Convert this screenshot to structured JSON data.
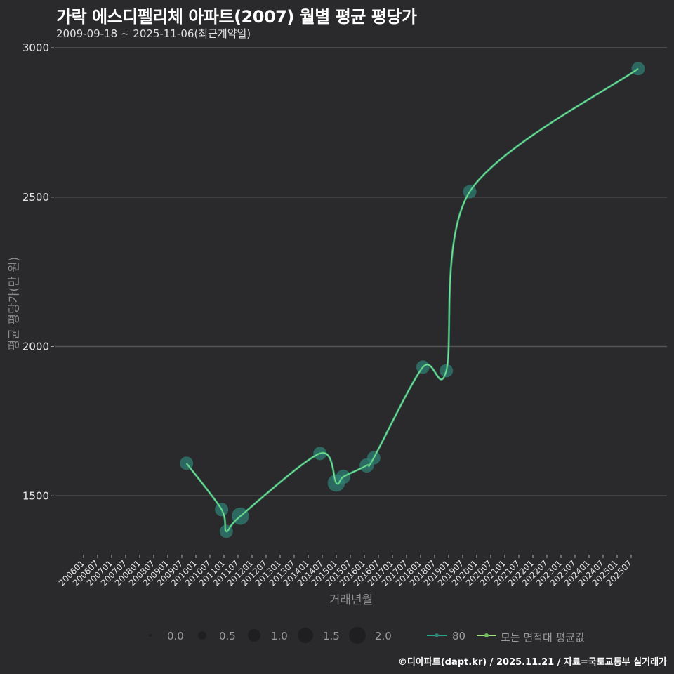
{
  "header": {
    "title": "가락 에스디펠리체 아파트(2007) 월별 평균 평당가",
    "subtitle": "2009-09-18 ~ 2025-11-06(최근계약일)"
  },
  "footer": "©디아파트(dapt.kr) / 2025.11.21 / 자료=국토교통부 실거래가",
  "colors": {
    "background": "#2a2a2c",
    "grid": "#555555",
    "series_80": "#2aa58a",
    "avg_line": "#9ee87a",
    "point_fill": "#2f7f72"
  },
  "chart_data": {
    "type": "line",
    "title": "가락 에스디펠리체 아파트(2007) 월별 평균 평당가",
    "subtitle": "2009-09-18 ~ 2025-11-06(최근계약일)",
    "xlabel": "거래년월",
    "ylabel": "평균 평당가(만 원)",
    "ylim": [
      1300,
      3000
    ],
    "yticks": [
      1500,
      2000,
      2500,
      3000
    ],
    "xticks": [
      "200601",
      "200607",
      "200701",
      "200707",
      "200801",
      "200807",
      "200901",
      "200907",
      "201001",
      "201007",
      "201101",
      "201107",
      "201201",
      "201207",
      "201301",
      "201307",
      "201401",
      "201407",
      "201501",
      "201507",
      "201601",
      "201607",
      "201701",
      "201707",
      "201801",
      "201807",
      "201901",
      "201907",
      "202001",
      "202007",
      "202101",
      "202107",
      "202201",
      "202207",
      "202301",
      "202307",
      "202401",
      "202407",
      "202501",
      "202507"
    ],
    "grid": true,
    "legend_position": "bottom",
    "size_legend": {
      "title": "",
      "values": [
        0.0,
        0.5,
        1.0,
        1.5,
        2.0
      ]
    },
    "series": [
      {
        "name": "80",
        "type": "scatter+line",
        "points": [
          {
            "x": "200909",
            "y": 1609,
            "size": 1.0
          },
          {
            "x": "201012",
            "y": 1454,
            "size": 1.0
          },
          {
            "x": "201102",
            "y": 1381,
            "size": 1.0
          },
          {
            "x": "201108",
            "y": 1432,
            "size": 1.8
          },
          {
            "x": "201406",
            "y": 1642,
            "size": 1.0
          },
          {
            "x": "201501",
            "y": 1543,
            "size": 1.8
          },
          {
            "x": "201504",
            "y": 1564,
            "size": 1.2
          },
          {
            "x": "201602",
            "y": 1602,
            "size": 1.2
          },
          {
            "x": "201605",
            "y": 1627,
            "size": 1.0
          },
          {
            "x": "201802",
            "y": 1931,
            "size": 1.0
          },
          {
            "x": "201812",
            "y": 1919,
            "size": 1.0
          },
          {
            "x": "201910",
            "y": 2518,
            "size": 1.0
          },
          {
            "x": "202510",
            "y": 2930,
            "size": 1.0
          }
        ]
      },
      {
        "name": "모든 면적대 평균값",
        "type": "line",
        "values_same_as": "80"
      }
    ]
  },
  "legend": {
    "sizes": [
      "0.0",
      "0.5",
      "1.0",
      "1.5",
      "2.0"
    ],
    "series_label": "80",
    "avg_label": "모든 면적대 평균값"
  }
}
